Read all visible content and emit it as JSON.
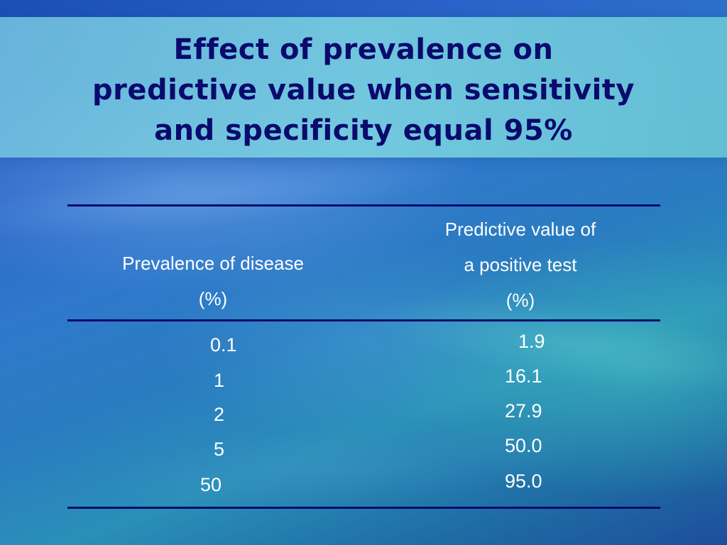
{
  "slide": {
    "title_lines": [
      "Effect of prevalence on",
      "predictive value when sensitivity",
      "and specificity equal 95%"
    ]
  },
  "table": {
    "headers": {
      "prevalence": [
        "Prevalence of disease",
        "(%)"
      ],
      "ppv": [
        "Predictive value of",
        "a positive test",
        "(%)"
      ]
    },
    "rows": [
      {
        "prevalence": "0.1",
        "ppv": "1.9"
      },
      {
        "prevalence": "1",
        "ppv": "16.1"
      },
      {
        "prevalence": "2",
        "ppv": "27.9"
      },
      {
        "prevalence": "5",
        "ppv": "50.0"
      },
      {
        "prevalence": "50",
        "ppv": "95.0"
      }
    ]
  },
  "colors": {
    "title_text": "#0a0a6e",
    "rule": "#070b6a",
    "body_text": "#ffffff"
  }
}
